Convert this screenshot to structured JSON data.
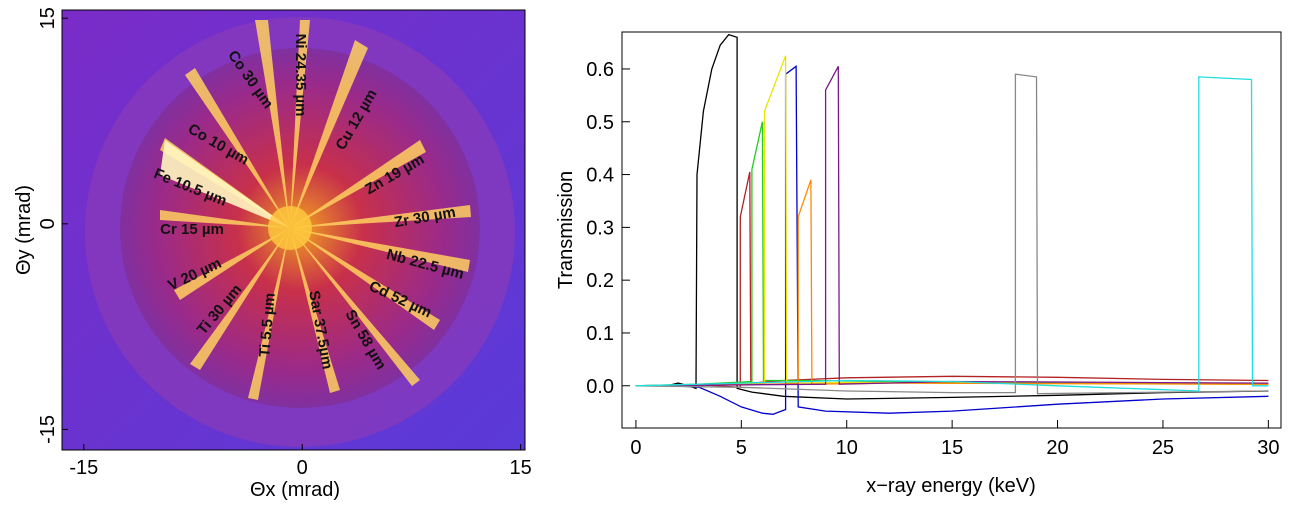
{
  "chart_data": [
    {
      "type": "image",
      "xlabel": "Θx (mrad)",
      "ylabel": "Θy (mrad)",
      "xlim": [
        -16.5,
        15.3
      ],
      "ylim": [
        -16.5,
        15.6
      ],
      "xticks": [
        -15,
        0,
        15
      ],
      "yticks": [
        -15,
        0,
        15
      ],
      "annotations": [
        "Co 30 µm",
        "Ni 24.35 µm",
        "Cu 12 µm",
        "Co 10 µm",
        "Zn 19 µm",
        "Fe 10.5 µm",
        "Zr 30 µm",
        "Cr 15 µm",
        "Nb 22.5 µm",
        "V 20 µm",
        "Cd 52 µm",
        "Ti 30 µm",
        "Ti  5.5 µm",
        "Sar 37.5µm",
        "Sn 58 µm"
      ]
    },
    {
      "type": "line",
      "xlabel": "x−ray energy (keV)",
      "ylabel": "Transmission",
      "xlim": [
        -0.66,
        30.6
      ],
      "ylim": [
        -0.08,
        0.67
      ],
      "xticks": [
        0,
        5,
        10,
        15,
        20,
        25,
        30
      ],
      "yticks": [
        {
          "value": 0,
          "label": "0.0"
        },
        0.1,
        0.2,
        0.3,
        0.4,
        0.5,
        0.6
      ],
      "series": [
        {
          "color": "#000000",
          "x": [
            0,
            1.5,
            2,
            2.5,
            2.85,
            2.9,
            3.2,
            3.6,
            4,
            4.4,
            4.8,
            4.8,
            5.5,
            7,
            10,
            15,
            20,
            25,
            30
          ],
          "values": [
            0,
            0,
            0.005,
            0,
            -0.005,
            0.4,
            0.52,
            0.6,
            0.645,
            0.665,
            0.66,
            -0.005,
            -0.012,
            -0.02,
            -0.025,
            -0.022,
            -0.018,
            -0.013,
            -0.01
          ]
        },
        {
          "color": "#0000cc",
          "x": [
            0,
            2,
            3,
            4,
            5,
            6,
            6.5,
            7.1,
            7.1,
            7.6,
            7.7,
            9,
            12,
            15,
            20,
            25,
            30
          ],
          "values": [
            0,
            0,
            -0.003,
            -0.02,
            -0.04,
            -0.052,
            -0.054,
            -0.045,
            0.59,
            0.605,
            -0.04,
            -0.048,
            -0.052,
            -0.048,
            -0.035,
            -0.025,
            -0.02
          ]
        },
        {
          "color": "#b22222",
          "x": [
            0,
            3,
            4.95,
            4.95,
            5.4,
            5.45,
            7,
            10,
            15,
            20,
            25,
            30
          ],
          "values": [
            0,
            0.002,
            -0.003,
            0.32,
            0.405,
            0.005,
            0.01,
            0.015,
            0.018,
            0.016,
            0.012,
            0.01
          ]
        },
        {
          "color": "#22cc22",
          "x": [
            0,
            3,
            5.5,
            5.5,
            6.0,
            6.05,
            8,
            12,
            18,
            25,
            30
          ],
          "values": [
            0,
            0.003,
            0.008,
            0.41,
            0.5,
            0.01,
            0.01,
            0.008,
            0.005,
            0.004,
            0.003
          ]
        },
        {
          "color": "#e6e600",
          "x": [
            0,
            4,
            6.1,
            6.1,
            7.1,
            7.15,
            10,
            20,
            30
          ],
          "values": [
            0,
            0.002,
            0.005,
            0.52,
            0.625,
            0.005,
            0.006,
            0.004,
            0.003
          ]
        },
        {
          "color": "#ff8800",
          "x": [
            0,
            5,
            7.7,
            7.7,
            8.3,
            8.35,
            12,
            20,
            30
          ],
          "values": [
            0,
            0.002,
            0.004,
            0.32,
            0.39,
            0.003,
            0.005,
            0.004,
            0.003
          ]
        },
        {
          "color": "#7a1a8a",
          "x": [
            0,
            6,
            9.0,
            9.0,
            9.6,
            9.65,
            15,
            25,
            30
          ],
          "values": [
            0,
            0.002,
            0.003,
            0.56,
            0.605,
            0.003,
            0.008,
            0.006,
            0.005
          ]
        },
        {
          "color": "#888888",
          "x": [
            0,
            5,
            10,
            15,
            18,
            18,
            19,
            19.05,
            25,
            30
          ],
          "values": [
            0,
            -0.003,
            -0.01,
            -0.013,
            -0.013,
            0.59,
            0.585,
            -0.015,
            -0.012,
            -0.01
          ]
        },
        {
          "color": "#22dddd",
          "x": [
            0,
            5,
            10,
            15,
            20,
            26.7,
            26.7,
            29.2,
            29.25,
            30
          ],
          "values": [
            0,
            0.005,
            0.01,
            0.008,
            0,
            -0.01,
            0.585,
            0.58,
            0,
            0
          ]
        }
      ]
    }
  ]
}
